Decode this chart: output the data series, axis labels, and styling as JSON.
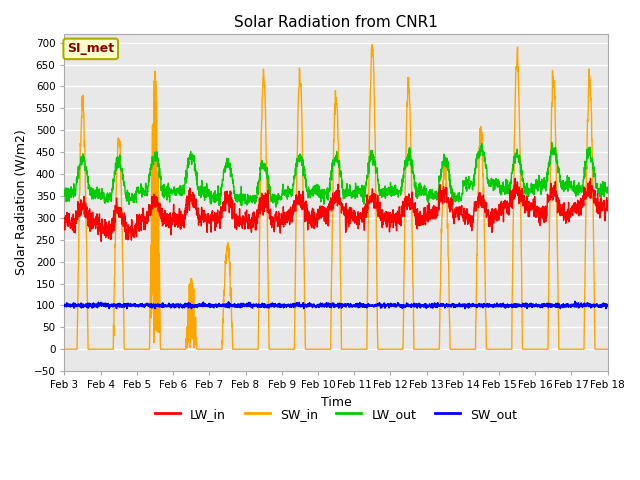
{
  "title": "Solar Radiation from CNR1",
  "xlabel": "Time",
  "ylabel": "Solar Radiation (W/m2)",
  "ylim": [
    -50,
    720
  ],
  "yticks": [
    -50,
    0,
    50,
    100,
    150,
    200,
    250,
    300,
    350,
    400,
    450,
    500,
    550,
    600,
    650,
    700
  ],
  "xtick_labels": [
    "Feb 3",
    "Feb 4",
    "Feb 5",
    "Feb 6",
    "Feb 7",
    "Feb 8",
    "Feb 9",
    "Feb 10",
    "Feb 11",
    "Feb 12",
    "Feb 13",
    "Feb 14",
    "Feb 15",
    "Feb 16",
    "Feb 17",
    "Feb 18"
  ],
  "annotation_text": "SI_met",
  "annotation_color": "#8B0000",
  "annotation_bg": "#FFFFCC",
  "annotation_edge": "#AAAA00",
  "series": {
    "LW_in": {
      "color": "#FF0000",
      "lw": 1.0
    },
    "SW_in": {
      "color": "#FFA500",
      "lw": 1.0
    },
    "LW_out": {
      "color": "#00CC00",
      "lw": 1.0
    },
    "SW_out": {
      "color": "#0000FF",
      "lw": 1.0
    }
  },
  "background_color": "#E8E8E8",
  "grid_color": "#FFFFFF",
  "legend_labels": [
    "LW_in",
    "SW_in",
    "LW_out",
    "SW_out"
  ],
  "legend_colors": [
    "#FF0000",
    "#FFA500",
    "#00CC00",
    "#0000FF"
  ],
  "figsize": [
    6.4,
    4.8
  ],
  "dpi": 100
}
